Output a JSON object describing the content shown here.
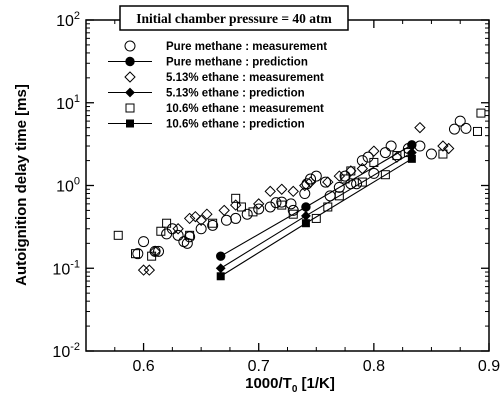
{
  "chart_data": {
    "type": "scatter",
    "title": "Initial chamber pressure = 40 atm",
    "xlabel": "1000/T",
    "xlabel_sub": "0",
    "xlabel_unit": " [1/K]",
    "ylabel": "Autoignition delay time [ms]",
    "xlim": [
      0.55,
      0.9
    ],
    "ylim": [
      0.01,
      100
    ],
    "yscale": "log",
    "grid": false,
    "legend_position": "top-left",
    "x_ticks": [
      {
        "value": 0.6,
        "label": "0.6"
      },
      {
        "value": 0.7,
        "label": "0.7"
      },
      {
        "value": 0.8,
        "label": "0.8"
      },
      {
        "value": 0.9,
        "label": "0.9"
      }
    ],
    "y_ticks": [
      {
        "value": 0.01,
        "base": "10",
        "exp": "-2"
      },
      {
        "value": 0.1,
        "base": "10",
        "exp": "-1"
      },
      {
        "value": 1,
        "base": "10",
        "exp": "0"
      },
      {
        "value": 10,
        "base": "10",
        "exp": "1"
      },
      {
        "value": 100,
        "base": "10",
        "exp": "2"
      }
    ],
    "series": [
      {
        "name": "Pure methane : measurement",
        "marker": "circle-open",
        "line": false,
        "points": [
          [
            0.595,
            0.15
          ],
          [
            0.6,
            0.21
          ],
          [
            0.61,
            0.16
          ],
          [
            0.613,
            0.16
          ],
          [
            0.62,
            0.26
          ],
          [
            0.625,
            0.3
          ],
          [
            0.63,
            0.25
          ],
          [
            0.635,
            0.21
          ],
          [
            0.638,
            0.2
          ],
          [
            0.64,
            0.24
          ],
          [
            0.65,
            0.3
          ],
          [
            0.66,
            0.33
          ],
          [
            0.672,
            0.38
          ],
          [
            0.68,
            0.4
          ],
          [
            0.69,
            0.45
          ],
          [
            0.7,
            0.52
          ],
          [
            0.71,
            0.55
          ],
          [
            0.715,
            0.62
          ],
          [
            0.72,
            0.63
          ],
          [
            0.728,
            0.6
          ],
          [
            0.73,
            0.5
          ],
          [
            0.74,
            0.8
          ],
          [
            0.742,
            1.05
          ],
          [
            0.745,
            1.2
          ],
          [
            0.75,
            1.3
          ],
          [
            0.758,
            1.1
          ],
          [
            0.762,
            0.75
          ],
          [
            0.77,
            0.95
          ],
          [
            0.775,
            1.3
          ],
          [
            0.78,
            1.05
          ],
          [
            0.785,
            1.05
          ],
          [
            0.79,
            2.0
          ],
          [
            0.795,
            2.2
          ],
          [
            0.8,
            1.4
          ],
          [
            0.81,
            2.5
          ],
          [
            0.815,
            3.0
          ],
          [
            0.83,
            2.8
          ],
          [
            0.84,
            3.0
          ],
          [
            0.85,
            2.4
          ],
          [
            0.87,
            4.8
          ],
          [
            0.875,
            6.0
          ],
          [
            0.88,
            4.9
          ]
        ]
      },
      {
        "name": "Pure methane : prediction",
        "marker": "circle-filled",
        "line": true,
        "points": [
          [
            0.667,
            0.14
          ],
          [
            0.741,
            0.55
          ],
          [
            0.833,
            3.1
          ]
        ]
      },
      {
        "name": "5.13% ethane : measurement",
        "marker": "diamond-open",
        "line": false,
        "points": [
          [
            0.6,
            0.095
          ],
          [
            0.605,
            0.095
          ],
          [
            0.61,
            0.16
          ],
          [
            0.63,
            0.3
          ],
          [
            0.64,
            0.4
          ],
          [
            0.645,
            0.42
          ],
          [
            0.65,
            0.38
          ],
          [
            0.655,
            0.45
          ],
          [
            0.67,
            0.5
          ],
          [
            0.68,
            0.58
          ],
          [
            0.7,
            0.6
          ],
          [
            0.71,
            0.85
          ],
          [
            0.72,
            0.9
          ],
          [
            0.73,
            0.85
          ],
          [
            0.74,
            1.0
          ],
          [
            0.745,
            1.1
          ],
          [
            0.76,
            1.1
          ],
          [
            0.77,
            1.3
          ],
          [
            0.78,
            1.5
          ],
          [
            0.79,
            1.6
          ],
          [
            0.8,
            2.6
          ],
          [
            0.82,
            2.2
          ],
          [
            0.84,
            5.0
          ],
          [
            0.86,
            3.0
          ],
          [
            0.865,
            2.8
          ]
        ]
      },
      {
        "name": "5.13% ethane : prediction",
        "marker": "diamond-filled",
        "line": true,
        "points": [
          [
            0.667,
            0.1
          ],
          [
            0.741,
            0.43
          ],
          [
            0.833,
            2.5
          ]
        ]
      },
      {
        "name": "10.6% ethane : measurement",
        "marker": "square-open",
        "line": false,
        "points": [
          [
            0.578,
            0.25
          ],
          [
            0.593,
            0.15
          ],
          [
            0.607,
            0.14
          ],
          [
            0.615,
            0.28
          ],
          [
            0.62,
            0.35
          ],
          [
            0.64,
            0.25
          ],
          [
            0.66,
            0.35
          ],
          [
            0.68,
            0.7
          ],
          [
            0.685,
            0.55
          ],
          [
            0.695,
            0.48
          ],
          [
            0.72,
            0.58
          ],
          [
            0.73,
            0.45
          ],
          [
            0.75,
            0.4
          ],
          [
            0.76,
            0.55
          ],
          [
            0.77,
            0.75
          ],
          [
            0.775,
            1.2
          ],
          [
            0.78,
            1.5
          ],
          [
            0.79,
            1.1
          ],
          [
            0.8,
            1.9
          ],
          [
            0.81,
            1.35
          ],
          [
            0.82,
            2.3
          ],
          [
            0.83,
            2.5
          ],
          [
            0.86,
            2.4
          ],
          [
            0.89,
            4.5
          ],
          [
            0.893,
            7.5
          ]
        ]
      },
      {
        "name": "10.6% ethane : prediction",
        "marker": "square-filled",
        "line": true,
        "points": [
          [
            0.667,
            0.08
          ],
          [
            0.741,
            0.35
          ],
          [
            0.833,
            2.1
          ]
        ]
      }
    ]
  }
}
